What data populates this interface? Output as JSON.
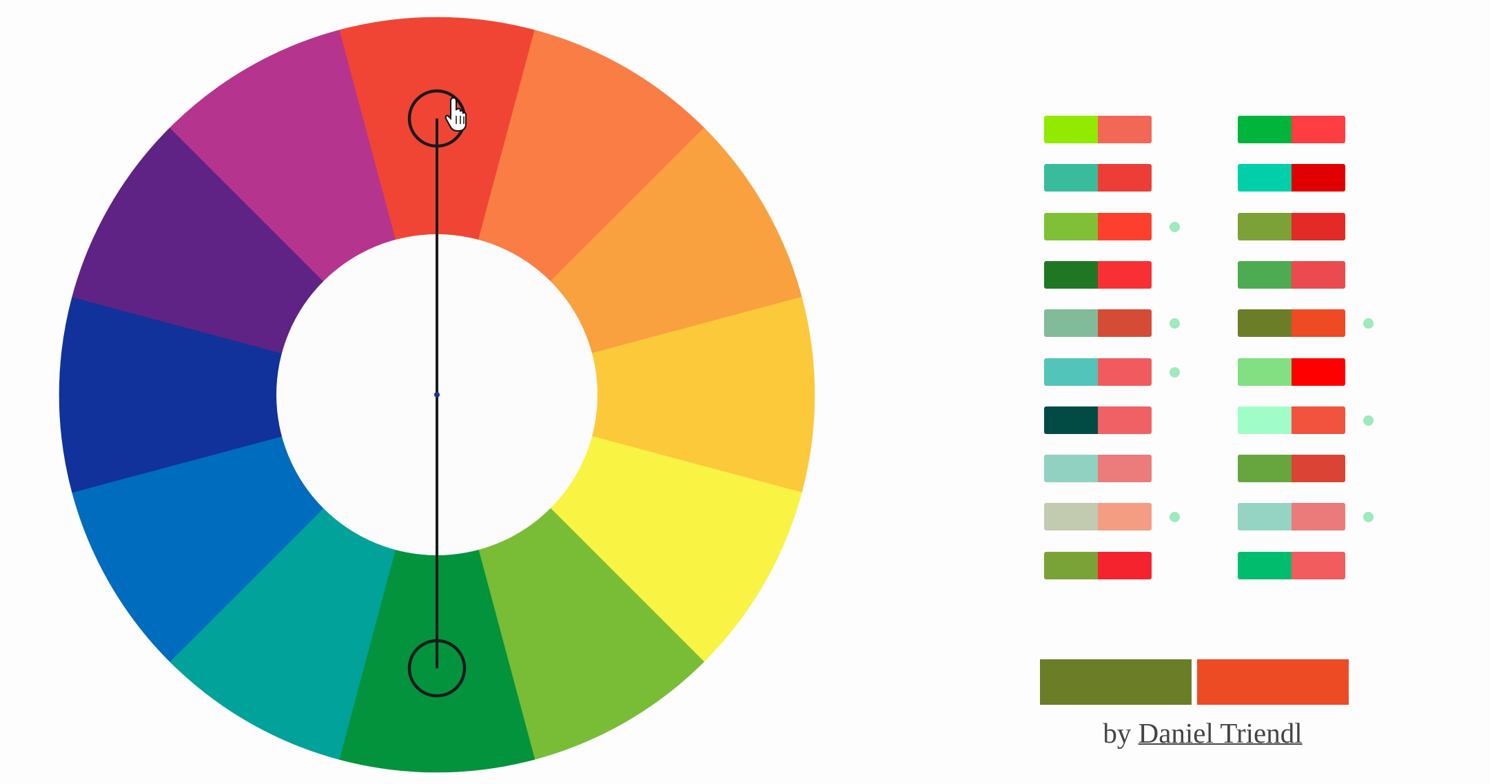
{
  "wheel": {
    "segments": [
      {
        "name": "red",
        "color": "#f04534"
      },
      {
        "name": "red-orange",
        "color": "#f97d45"
      },
      {
        "name": "orange",
        "color": "#f9a03f"
      },
      {
        "name": "yellow-orange",
        "color": "#fbc93a"
      },
      {
        "name": "yellow",
        "color": "#f9f344"
      },
      {
        "name": "yellow-green",
        "color": "#79bc36"
      },
      {
        "name": "green",
        "color": "#02933c"
      },
      {
        "name": "blue-green",
        "color": "#01a29a"
      },
      {
        "name": "blue",
        "color": "#006cbd"
      },
      {
        "name": "blue-violet",
        "color": "#11329a"
      },
      {
        "name": "violet",
        "color": "#5e2384"
      },
      {
        "name": "red-violet",
        "color": "#b5348e"
      }
    ],
    "center_color": "#fcfcfc",
    "handle_line_color": "#1a1a1a",
    "center_dot_color": "#1d2fa0"
  },
  "palettes": {
    "left": [
      {
        "a": "#92ea00",
        "b": "#f26755",
        "dot": false
      },
      {
        "a": "#38bc9c",
        "b": "#ec3e37",
        "dot": false
      },
      {
        "a": "#80c036",
        "b": "#fc402d",
        "dot": true
      },
      {
        "a": "#1f7723",
        "b": "#f93033",
        "dot": false
      },
      {
        "a": "#82bb99",
        "b": "#d54c36",
        "dot": true
      },
      {
        "a": "#53c4b9",
        "b": "#f15b5f",
        "dot": true
      },
      {
        "a": "#024b45",
        "b": "#f06166",
        "dot": false
      },
      {
        "a": "#91d1c1",
        "b": "#ec7b7c",
        "dot": false
      },
      {
        "a": "#c2caaf",
        "b": "#f49d83",
        "dot": true
      },
      {
        "a": "#7aa337",
        "b": "#f5232e",
        "dot": false
      }
    ],
    "right": [
      {
        "a": "#01b43c",
        "b": "#fe3e43",
        "dot": false
      },
      {
        "a": "#00d0a9",
        "b": "#e00000",
        "dot": false
      },
      {
        "a": "#7ca137",
        "b": "#e32a26",
        "dot": false
      },
      {
        "a": "#4dab51",
        "b": "#eb4a4f",
        "dot": false
      },
      {
        "a": "#6c7d27",
        "b": "#ee4a23",
        "dot": true
      },
      {
        "a": "#82df82",
        "b": "#fe0000",
        "dot": false
      },
      {
        "a": "#a1fdc8",
        "b": "#f2533e",
        "dot": true
      },
      {
        "a": "#67a63f",
        "b": "#db4434",
        "dot": false
      },
      {
        "a": "#95d4c2",
        "b": "#eb7b7b",
        "dot": true
      },
      {
        "a": "#00bd6d",
        "b": "#f25c5f",
        "dot": false
      }
    ],
    "dot_color": "#9deabc"
  },
  "preview": {
    "color_a": "#6b7d27",
    "color_b": "#ed4b23"
  },
  "byline": {
    "prefix": "by",
    "author": "Daniel Triendl"
  }
}
